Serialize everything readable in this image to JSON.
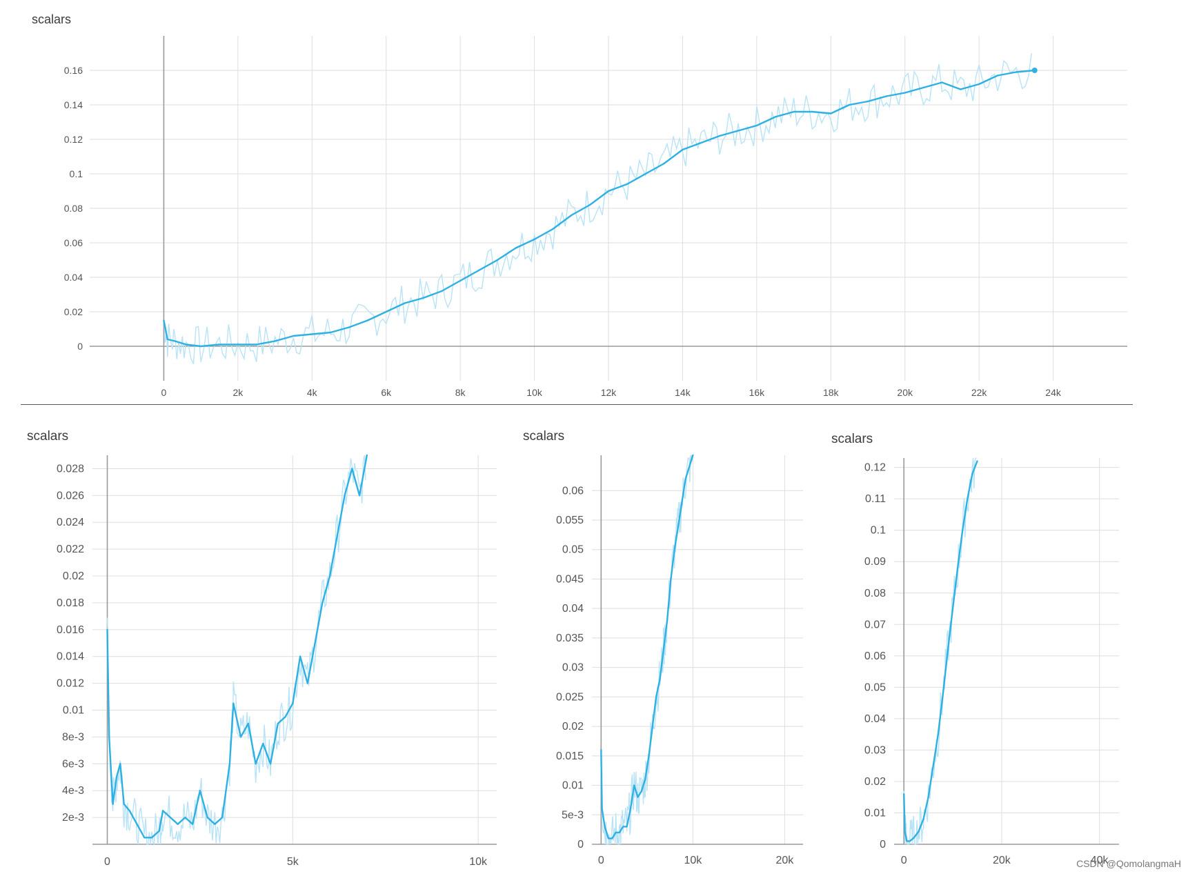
{
  "watermark": "CSDN @QomolangmaH",
  "colors": {
    "smoothed": "#2eb0e3",
    "raw": "#b8e3f7",
    "grid": "#dedede",
    "axis": "#9a9a9a"
  },
  "chart_data": [
    {
      "type": "line",
      "title": "scalars",
      "xlim": [
        -2000,
        26000
      ],
      "ylim": [
        -0.02,
        0.18
      ],
      "xticks": [
        0,
        2000,
        4000,
        6000,
        8000,
        10000,
        12000,
        14000,
        16000,
        18000,
        20000,
        22000,
        24000
      ],
      "xtick_labels": [
        "0",
        "2k",
        "4k",
        "6k",
        "8k",
        "10k",
        "12k",
        "14k",
        "16k",
        "18k",
        "20k",
        "22k",
        "24k"
      ],
      "yticks": [
        0,
        0.02,
        0.04,
        0.06,
        0.08,
        0.1,
        0.12,
        0.14,
        0.16
      ],
      "ytick_labels": [
        "0",
        "0.02",
        "0.04",
        "0.06",
        "0.08",
        "0.1",
        "0.12",
        "0.14",
        "0.16"
      ],
      "grid": true,
      "series": [
        {
          "x": [
            0,
            100,
            300,
            600,
            1000,
            1500,
            2000,
            2500,
            3000,
            3500,
            4000,
            4500,
            5000,
            5500,
            6000,
            6500,
            7000,
            7500,
            8000,
            8500,
            9000,
            9500,
            10000,
            10500,
            11000,
            11500,
            12000,
            12500,
            13000,
            13500,
            14000,
            14500,
            15000,
            15500,
            16000,
            16500,
            17000,
            17500,
            18000,
            18500,
            19000,
            19500,
            20000,
            20500,
            21000,
            21500,
            22000,
            22500,
            23000,
            23500
          ],
          "y": [
            0.015,
            0.004,
            0.003,
            0.001,
            0.0,
            0.001,
            0.001,
            0.001,
            0.003,
            0.006,
            0.007,
            0.008,
            0.011,
            0.015,
            0.02,
            0.025,
            0.028,
            0.032,
            0.038,
            0.044,
            0.05,
            0.057,
            0.062,
            0.068,
            0.076,
            0.082,
            0.09,
            0.094,
            0.1,
            0.106,
            0.114,
            0.118,
            0.122,
            0.125,
            0.128,
            0.133,
            0.136,
            0.136,
            0.135,
            0.14,
            0.142,
            0.145,
            0.147,
            0.15,
            0.153,
            0.149,
            0.152,
            0.157,
            0.159,
            0.16
          ]
        }
      ]
    },
    {
      "type": "line",
      "title": "scalars",
      "xlim": [
        -400,
        10500
      ],
      "ylim": [
        0,
        0.029
      ],
      "xticks": [
        0,
        5000,
        10000
      ],
      "xtick_labels": [
        "0",
        "5k",
        "10k"
      ],
      "yticks": [
        0.002,
        0.004,
        0.006,
        0.008,
        0.01,
        0.012,
        0.014,
        0.016,
        0.018,
        0.02,
        0.022,
        0.024,
        0.026,
        0.028
      ],
      "ytick_labels": [
        "2e-3",
        "4e-3",
        "6e-3",
        "8e-3",
        "0.01",
        "0.012",
        "0.014",
        "0.016",
        "0.018",
        "0.02",
        "0.022",
        "0.024",
        "0.026",
        "0.028"
      ],
      "grid": true,
      "series": [
        {
          "x": [
            0,
            50,
            150,
            250,
            350,
            450,
            600,
            800,
            1000,
            1200,
            1400,
            1500,
            1700,
            1900,
            2100,
            2300,
            2500,
            2700,
            2900,
            3100,
            3300,
            3400,
            3600,
            3800,
            4000,
            4200,
            4400,
            4600,
            4800,
            5000,
            5200,
            5400,
            5600,
            5800,
            6000,
            6200,
            6400,
            6600,
            6800,
            7000
          ],
          "y": [
            0.016,
            0.008,
            0.003,
            0.005,
            0.006,
            0.003,
            0.0025,
            0.0015,
            0.0005,
            0.0005,
            0.001,
            0.0025,
            0.002,
            0.0015,
            0.002,
            0.0015,
            0.004,
            0.002,
            0.0015,
            0.002,
            0.006,
            0.0105,
            0.008,
            0.009,
            0.006,
            0.0075,
            0.006,
            0.009,
            0.0095,
            0.0105,
            0.014,
            0.012,
            0.015,
            0.018,
            0.02,
            0.023,
            0.026,
            0.028,
            0.026,
            0.029
          ]
        }
      ]
    },
    {
      "type": "line",
      "title": "scalars",
      "xlim": [
        -1000,
        22000
      ],
      "ylim": [
        0,
        0.066
      ],
      "xticks": [
        0,
        10000,
        20000
      ],
      "xtick_labels": [
        "0",
        "10k",
        "20k"
      ],
      "yticks": [
        0,
        0.005,
        0.01,
        0.015,
        0.02,
        0.025,
        0.03,
        0.035,
        0.04,
        0.045,
        0.05,
        0.055,
        0.06
      ],
      "ytick_labels": [
        "0",
        "5e-3",
        "0.01",
        "0.015",
        "0.02",
        "0.025",
        "0.03",
        "0.035",
        "0.04",
        "0.045",
        "0.05",
        "0.055",
        "0.06"
      ],
      "grid": true,
      "series": [
        {
          "x": [
            0,
            100,
            400,
            800,
            1200,
            1600,
            2000,
            2400,
            2800,
            3200,
            3600,
            4000,
            4400,
            4800,
            5200,
            5600,
            6000,
            6400,
            6800,
            7200,
            7600,
            8000,
            8400,
            8800,
            9200,
            9600,
            10000
          ],
          "y": [
            0.016,
            0.006,
            0.003,
            0.001,
            0.001,
            0.002,
            0.002,
            0.003,
            0.003,
            0.006,
            0.01,
            0.008,
            0.009,
            0.011,
            0.015,
            0.02,
            0.025,
            0.028,
            0.033,
            0.038,
            0.045,
            0.05,
            0.054,
            0.058,
            0.062,
            0.064,
            0.066
          ]
        }
      ]
    },
    {
      "type": "line",
      "title": "scalars",
      "xlim": [
        -2000,
        44000
      ],
      "ylim": [
        0,
        0.123
      ],
      "xticks": [
        0,
        20000,
        40000
      ],
      "xtick_labels": [
        "0",
        "20k",
        "40k"
      ],
      "yticks": [
        0,
        0.01,
        0.02,
        0.03,
        0.04,
        0.05,
        0.06,
        0.07,
        0.08,
        0.09,
        0.1,
        0.11,
        0.12
      ],
      "ytick_labels": [
        "0",
        "0.01",
        "0.02",
        "0.03",
        "0.04",
        "0.05",
        "0.06",
        "0.07",
        "0.08",
        "0.09",
        "0.1",
        "0.11",
        "0.12"
      ],
      "grid": true,
      "series": [
        {
          "x": [
            0,
            200,
            600,
            1200,
            2000,
            3000,
            4000,
            5000,
            6000,
            7000,
            8000,
            9000,
            10000,
            11000,
            12000,
            13000,
            14000,
            15000
          ],
          "y": [
            0.016,
            0.004,
            0.001,
            0.001,
            0.002,
            0.004,
            0.008,
            0.015,
            0.025,
            0.035,
            0.048,
            0.062,
            0.075,
            0.088,
            0.1,
            0.11,
            0.118,
            0.122
          ]
        }
      ]
    }
  ]
}
